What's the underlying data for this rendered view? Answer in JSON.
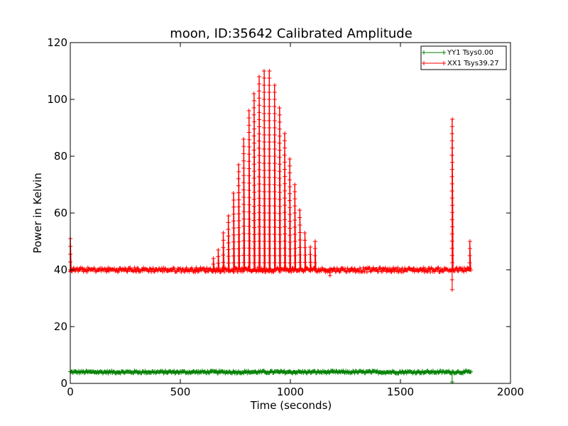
{
  "chart_data": {
    "type": "line",
    "title": "moon, ID:35642 Calibrated Amplitude",
    "xlabel": "Time (seconds)",
    "ylabel": "Power in Kelvin",
    "xlim": [
      0,
      2000
    ],
    "ylim": [
      0,
      120
    ],
    "x_ticks": [
      0,
      500,
      1000,
      1500,
      2000
    ],
    "y_ticks": [
      0,
      20,
      40,
      60,
      80,
      100,
      120
    ],
    "x_tick_labels": [
      "0",
      "500",
      "1000",
      "1500",
      "2000"
    ],
    "y_tick_labels": [
      "0",
      "20",
      "40",
      "60",
      "80",
      "100",
      "120"
    ],
    "grid": false,
    "legend_position": "top-right",
    "series": [
      {
        "name": "YY1 Tsys0.00",
        "color": "#008000",
        "marker": "plus",
        "baseline": 4.0,
        "x_range": [
          0,
          1820
        ],
        "approx_points": [
          [
            0,
            4.0
          ],
          [
            500,
            4.0
          ],
          [
            1000,
            4.0
          ],
          [
            1500,
            3.8
          ],
          [
            1735,
            0.5
          ],
          [
            1800,
            3.9
          ],
          [
            1820,
            4.0
          ]
        ]
      },
      {
        "name": "XX1 Tsys39.27",
        "color": "#ff0000",
        "marker": "plus",
        "baseline": 40.0,
        "x_range": [
          0,
          1820
        ],
        "peaks": [
          {
            "x": 0,
            "y": 51
          },
          {
            "x": 650,
            "y": 44
          },
          {
            "x": 672,
            "y": 47
          },
          {
            "x": 695,
            "y": 53
          },
          {
            "x": 718,
            "y": 59
          },
          {
            "x": 742,
            "y": 67
          },
          {
            "x": 765,
            "y": 77
          },
          {
            "x": 788,
            "y": 86
          },
          {
            "x": 812,
            "y": 96
          },
          {
            "x": 835,
            "y": 102
          },
          {
            "x": 858,
            "y": 108
          },
          {
            "x": 881,
            "y": 110
          },
          {
            "x": 904,
            "y": 110
          },
          {
            "x": 928,
            "y": 105
          },
          {
            "x": 951,
            "y": 97
          },
          {
            "x": 974,
            "y": 88
          },
          {
            "x": 997,
            "y": 79
          },
          {
            "x": 1020,
            "y": 70
          },
          {
            "x": 1043,
            "y": 61
          },
          {
            "x": 1066,
            "y": 53
          },
          {
            "x": 1090,
            "y": 48
          },
          {
            "x": 1112,
            "y": 50
          },
          {
            "x": 1735,
            "y": 93
          },
          {
            "x": 1815,
            "y": 50
          }
        ],
        "dips": [
          {
            "x": 1180,
            "y": 38
          },
          {
            "x": 1735,
            "y": 33
          }
        ]
      }
    ]
  }
}
